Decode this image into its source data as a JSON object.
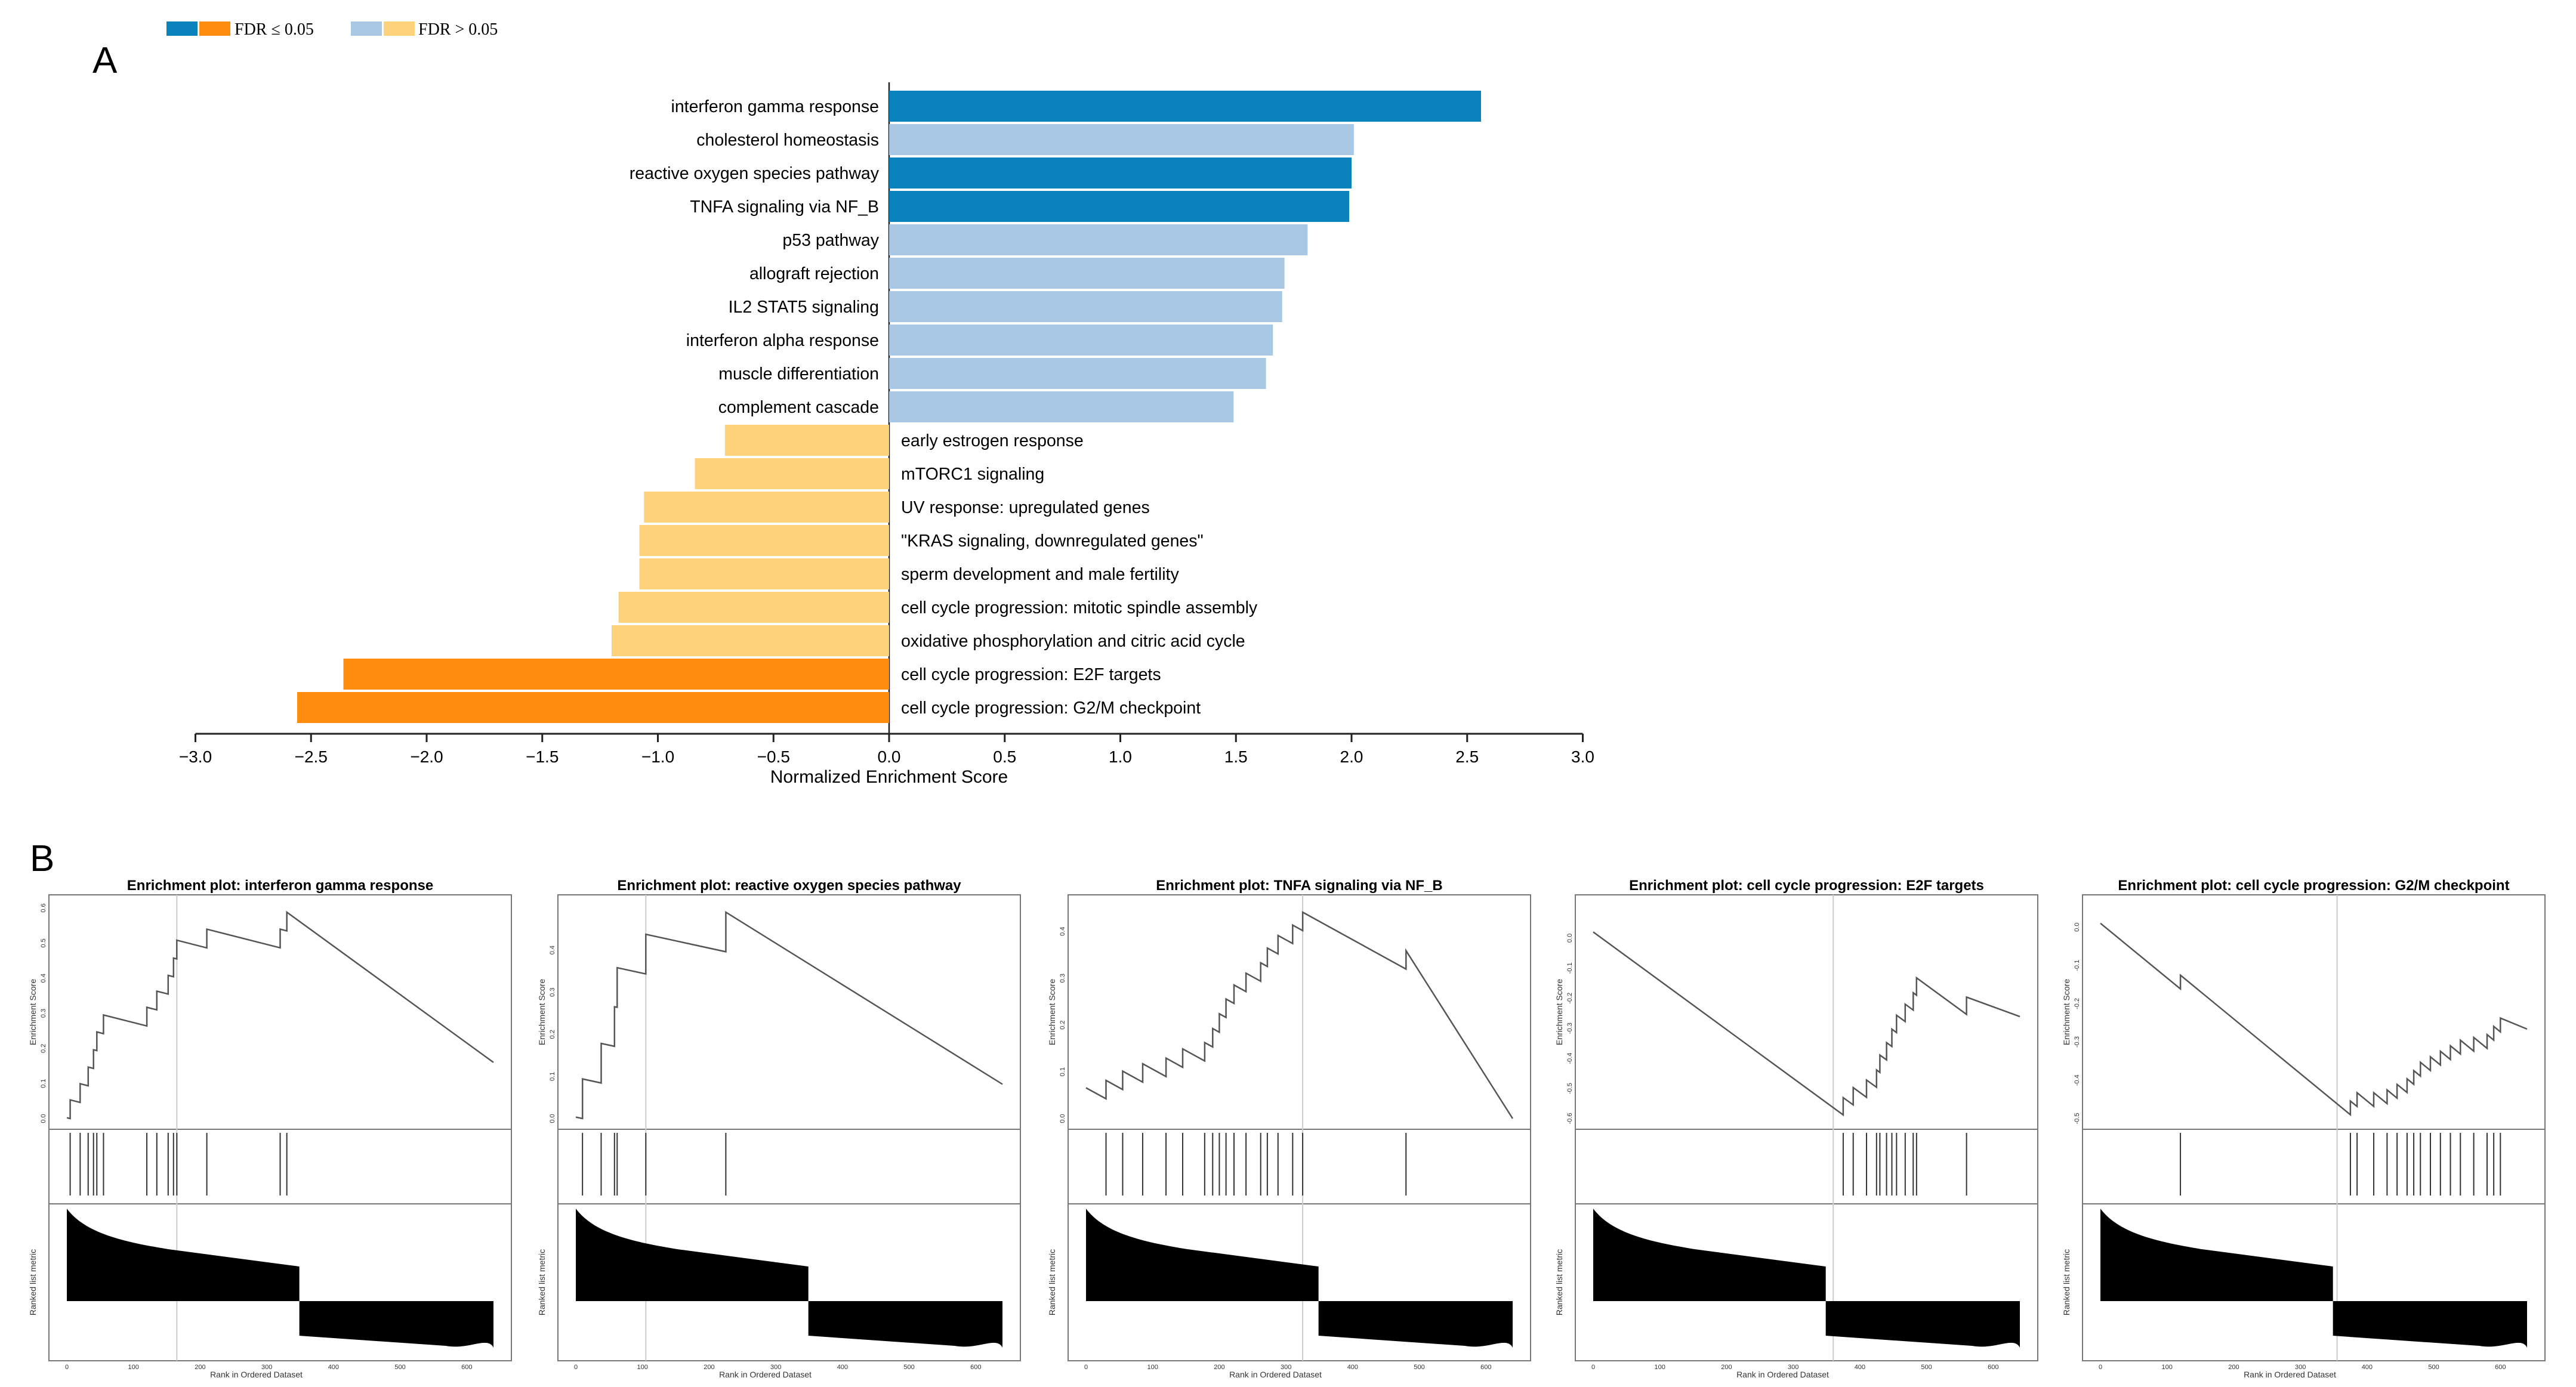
{
  "panel_a_letter": "A",
  "panel_b_letter": "B",
  "legend": {
    "sig_label": "FDR ≤ 0.05",
    "nonsig_label": "FDR > 0.05",
    "colors": {
      "pos_sig": "#0a82bc",
      "pos_nonsig": "#a8c8e4",
      "neg_sig": "#fd8c0f",
      "neg_nonsig": "#fdd27a"
    }
  },
  "chart_data": [
    {
      "type": "bar",
      "orientation": "horizontal",
      "xlabel": "Normalized Enrichment Score",
      "xlim": [
        -3.0,
        3.0
      ],
      "xticks": [
        -3.0,
        -2.5,
        -2.0,
        -1.5,
        -1.0,
        -0.5,
        0.0,
        0.5,
        1.0,
        1.5,
        2.0,
        2.5,
        3.0
      ],
      "xtick_labels": [
        "−3.0",
        "−2.5",
        "−2.0",
        "−1.5",
        "−1.0",
        "−0.5",
        "0.0",
        "0.5",
        "1.0",
        "1.5",
        "2.0",
        "2.5",
        "3.0"
      ],
      "bars": [
        {
          "label": "interferon gamma response",
          "value": 2.56,
          "significant": true
        },
        {
          "label": "cholesterol homeostasis",
          "value": 2.01,
          "significant": false
        },
        {
          "label": "reactive oxygen species pathway",
          "value": 2.0,
          "significant": true
        },
        {
          "label": "TNFA signaling via NF_B",
          "value": 1.99,
          "significant": true
        },
        {
          "label": "p53 pathway",
          "value": 1.81,
          "significant": false
        },
        {
          "label": "allograft rejection",
          "value": 1.71,
          "significant": false
        },
        {
          "label": "IL2 STAT5 signaling",
          "value": 1.7,
          "significant": false
        },
        {
          "label": "interferon alpha response",
          "value": 1.66,
          "significant": false
        },
        {
          "label": "muscle differentiation",
          "value": 1.63,
          "significant": false
        },
        {
          "label": "complement cascade",
          "value": 1.49,
          "significant": false
        },
        {
          "label": "early estrogen response",
          "value": -0.71,
          "significant": false
        },
        {
          "label": "mTORC1 signaling",
          "value": -0.84,
          "significant": false
        },
        {
          "label": "UV response: upregulated genes",
          "value": -1.06,
          "significant": false
        },
        {
          "label": "\"KRAS signaling, downregulated genes\"",
          "value": -1.08,
          "significant": false
        },
        {
          "label": "sperm development and male fertility",
          "value": -1.08,
          "significant": false
        },
        {
          "label": "cell cycle progression: mitotic spindle assembly",
          "value": -1.17,
          "significant": false
        },
        {
          "label": "oxidative phosphorylation and citric acid cycle",
          "value": -1.2,
          "significant": false
        },
        {
          "label": "cell cycle progression: E2F targets",
          "value": -2.36,
          "significant": true
        },
        {
          "label": "cell cycle progression: G2/M checkpoint",
          "value": -2.56,
          "significant": true
        }
      ]
    },
    {
      "type": "line",
      "title": "Enrichment plot: interferon gamma response",
      "ylabel": "Enrichment Score",
      "y2label": "Ranked list metric",
      "xlabel": "Rank in Ordered Dataset",
      "xlim": [
        0,
        640
      ],
      "ylim": [
        0,
        0.6
      ],
      "yticks": [
        "0.0",
        "0.1",
        "0.2",
        "0.3",
        "0.4",
        "0.5",
        "0.6"
      ],
      "xticks": [
        0,
        100,
        200,
        300,
        400,
        500,
        600
      ],
      "peak": 165,
      "hits": [
        5,
        20,
        32,
        40,
        45,
        55,
        120,
        135,
        152,
        160,
        165,
        210,
        320,
        330
      ]
    },
    {
      "type": "line",
      "title": "Enrichment plot: reactive oxygen species pathway",
      "ylabel": "Enrichment Score",
      "y2label": "Ranked list metric",
      "xlabel": "Rank in Ordered Dataset",
      "xlim": [
        0,
        640
      ],
      "ylim": [
        0,
        0.5
      ],
      "yticks": [
        "0.0",
        "0.1",
        "0.2",
        "0.3",
        "0.4"
      ],
      "xticks": [
        0,
        100,
        200,
        300,
        400,
        500,
        600
      ],
      "peak": 105,
      "hits": [
        10,
        38,
        58,
        62,
        105,
        225
      ]
    },
    {
      "type": "line",
      "title": "Enrichment plot: TNFA signaling via NF_B",
      "ylabel": "Enrichment Score",
      "y2label": "Ranked list metric",
      "xlabel": "Rank in Ordered Dataset",
      "xlim": [
        0,
        640
      ],
      "ylim": [
        0,
        0.45
      ],
      "yticks": [
        "0.0",
        "0.1",
        "0.2",
        "0.3",
        "0.4"
      ],
      "xticks": [
        0,
        100,
        200,
        300,
        400,
        500,
        600
      ],
      "peak": 325,
      "hits": [
        30,
        55,
        85,
        120,
        145,
        178,
        190,
        200,
        210,
        222,
        240,
        262,
        272,
        288,
        310,
        325,
        480
      ]
    },
    {
      "type": "line",
      "title": "Enrichment plot: cell cycle progression: E2F targets",
      "ylabel": "Enrichment Score",
      "y2label": "Ranked list metric",
      "xlabel": "Rank in Ordered Dataset",
      "xlim": [
        0,
        640
      ],
      "ylim": [
        -0.6,
        0.1
      ],
      "yticks": [
        "0.0",
        "-0.1",
        "-0.2",
        "-0.3",
        "-0.4",
        "-0.5",
        "-0.6"
      ],
      "xticks": [
        0,
        100,
        200,
        300,
        400,
        500,
        600
      ],
      "peak": 360,
      "hits": [
        375,
        390,
        410,
        425,
        430,
        440,
        448,
        455,
        468,
        480,
        485,
        560
      ]
    },
    {
      "type": "line",
      "title": "Enrichment plot: cell cycle progression: G2/M checkpoint",
      "ylabel": "Enrichment Score",
      "y2label": "Ranked list metric",
      "xlabel": "Rank in Ordered Dataset",
      "xlim": [
        0,
        640
      ],
      "ylim": [
        -0.5,
        0.05
      ],
      "yticks": [
        "0.0",
        "-0.1",
        "-0.2",
        "-0.3",
        "-0.4",
        "-0.5"
      ],
      "xticks": [
        0,
        100,
        200,
        300,
        400,
        500,
        600
      ],
      "peak": 355,
      "hits": [
        120,
        375,
        385,
        410,
        430,
        445,
        460,
        470,
        480,
        495,
        510,
        525,
        540,
        560,
        580,
        590,
        600
      ]
    }
  ]
}
